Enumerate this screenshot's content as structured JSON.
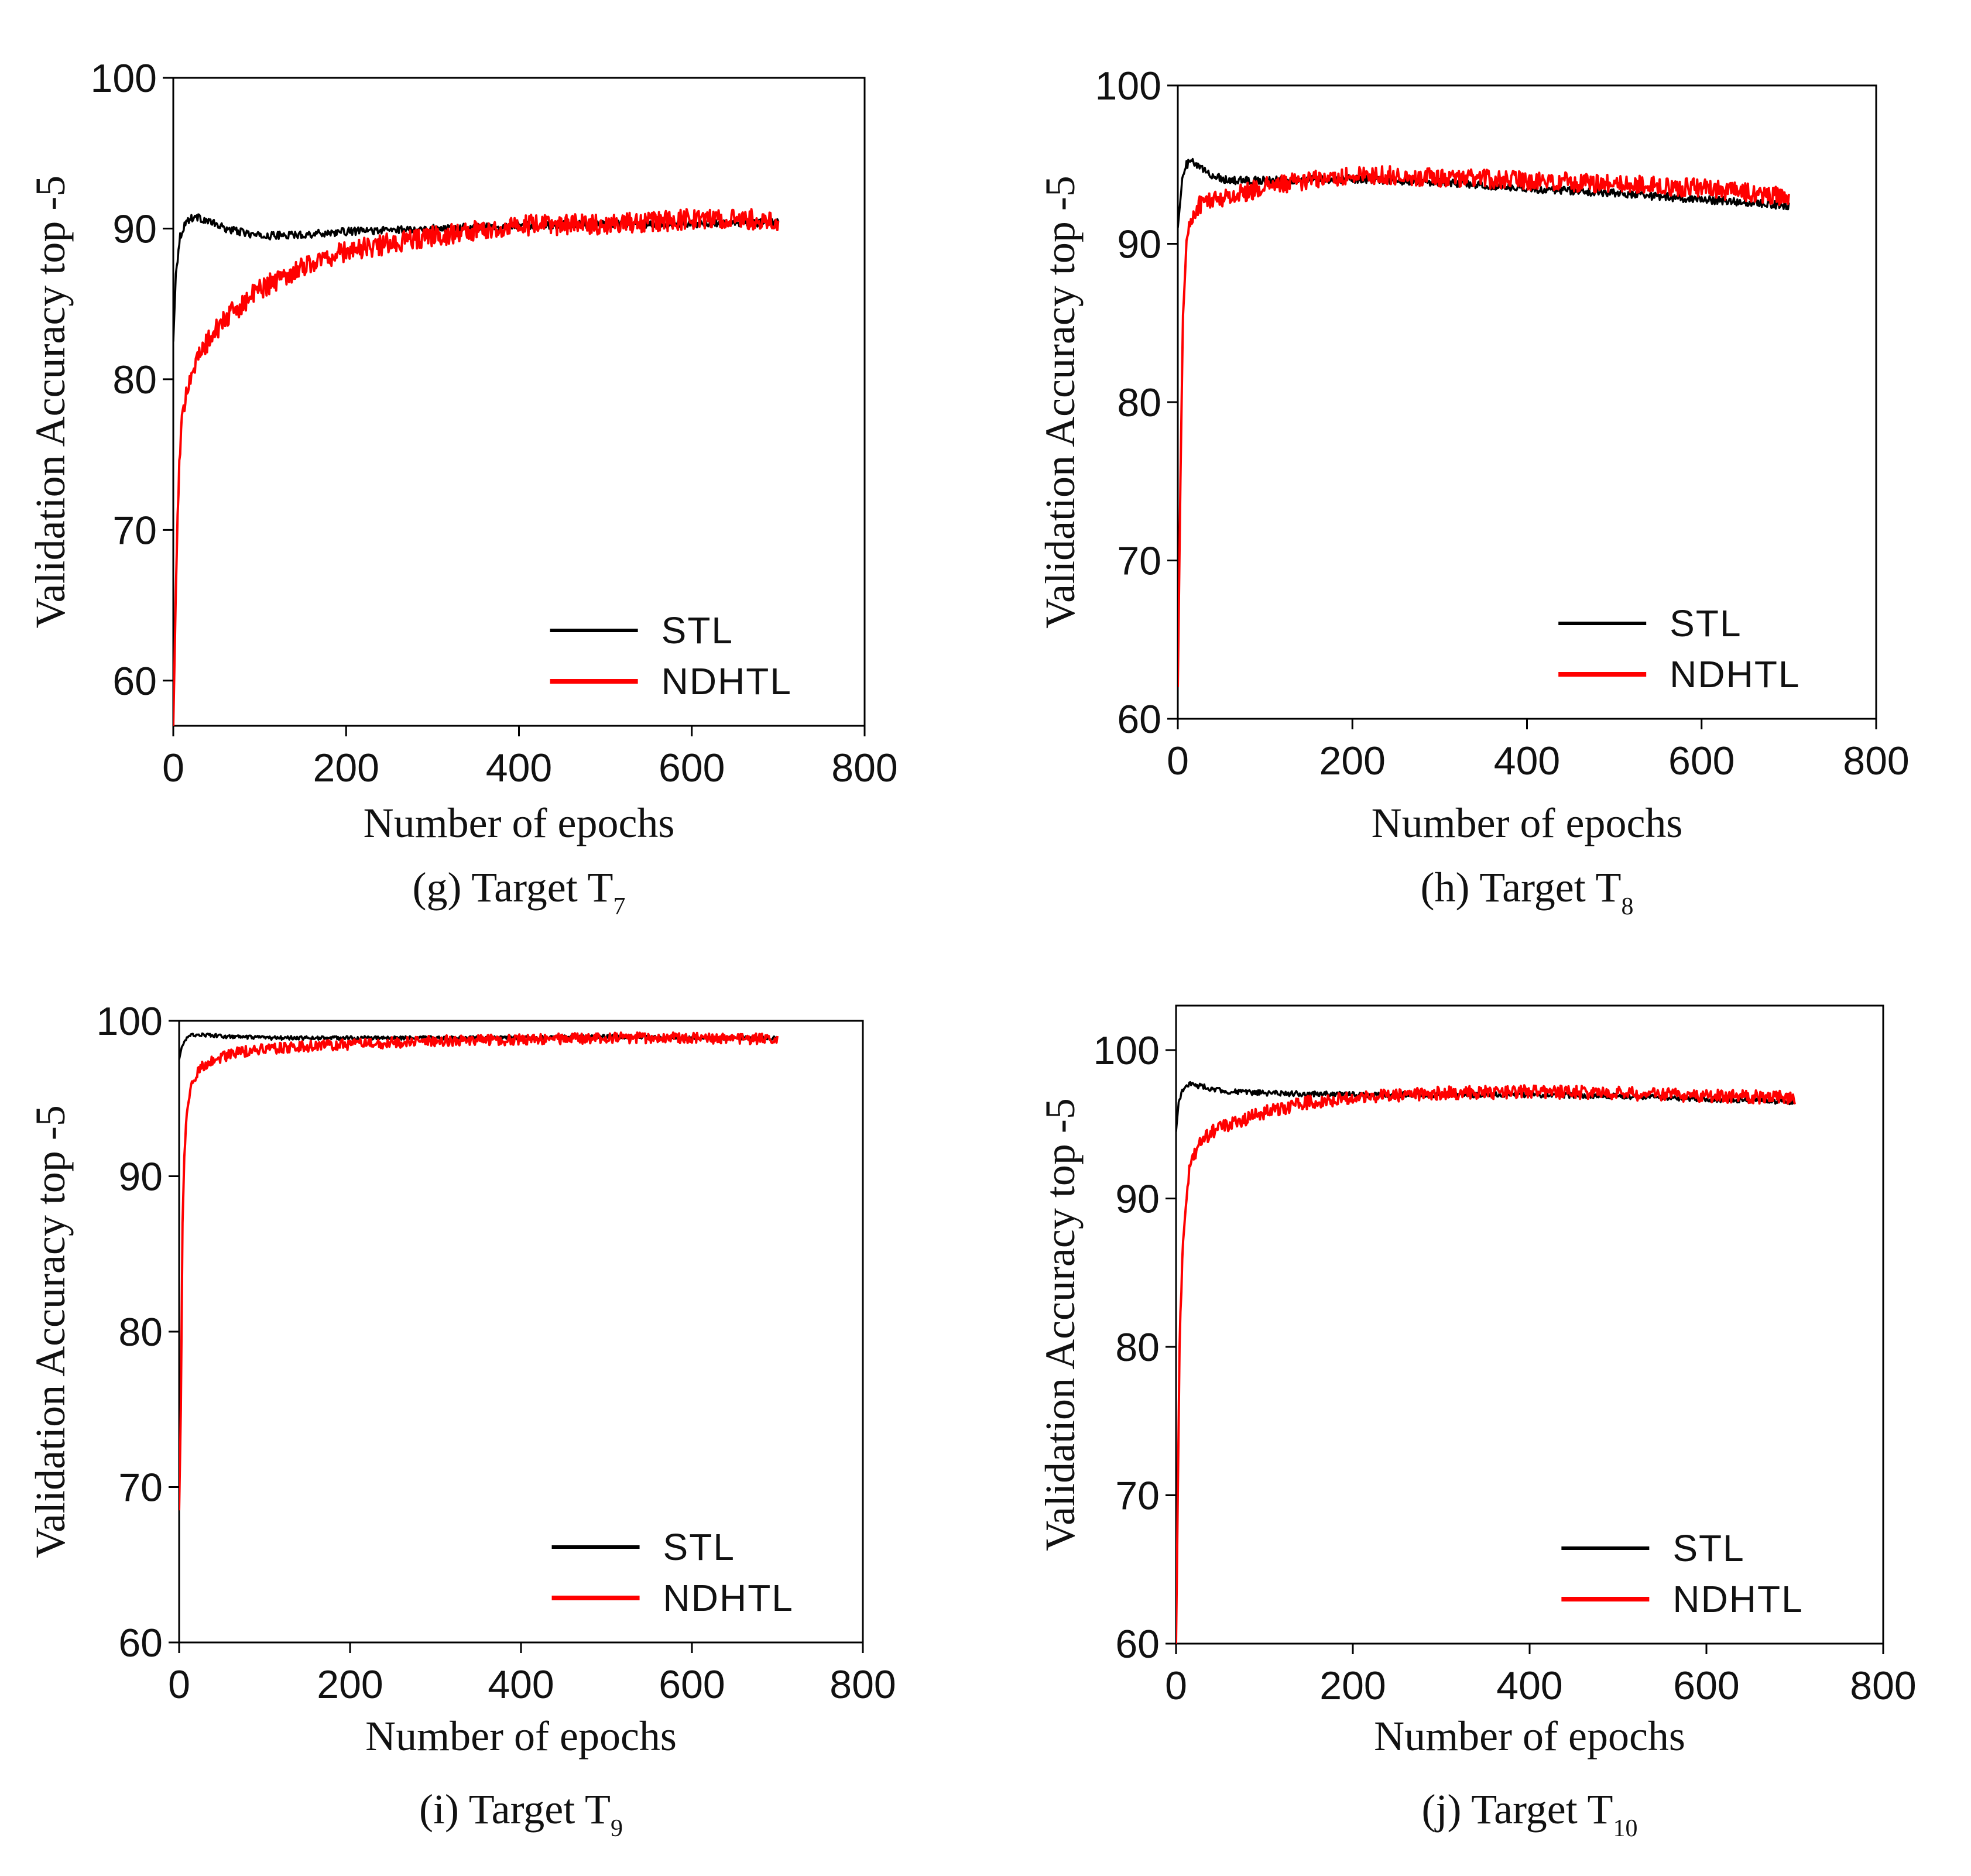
{
  "colors": {
    "STL": "#000000",
    "NDHTL": "#ff0000"
  },
  "chart_data": [
    {
      "id": "g",
      "type": "line",
      "caption_main": "(g) Target T",
      "caption_sub": "7",
      "xlabel": "Number  of epochs",
      "ylabel": "Validation  Accuracy top -5",
      "xlim": [
        0,
        800
      ],
      "ylim": [
        57,
        100
      ],
      "xticks": [
        0,
        200,
        400,
        600,
        800
      ],
      "yticks": [
        60,
        70,
        80,
        90,
        100
      ],
      "legend": {
        "position": "bottom-right",
        "entries": [
          "STL",
          "NDHTL"
        ]
      },
      "series": [
        {
          "name": "STL",
          "color": "#000000",
          "noise": 0.25,
          "x": [
            0,
            3,
            8,
            15,
            25,
            40,
            60,
            100,
            150,
            200,
            300,
            400,
            500,
            600,
            700
          ],
          "y": [
            82.5,
            87,
            89.5,
            90.5,
            90.8,
            90.5,
            90,
            89.5,
            89.6,
            89.8,
            90,
            90.2,
            90.3,
            90.3,
            90.4
          ]
        },
        {
          "name": "NDHTL",
          "color": "#ff0000",
          "noise": 0.7,
          "x": [
            0,
            3,
            6,
            10,
            15,
            25,
            40,
            60,
            100,
            150,
            200,
            300,
            400,
            500,
            600,
            700
          ],
          "y": [
            57,
            66,
            73,
            77,
            79.5,
            81,
            82.5,
            84,
            86,
            87.5,
            88.5,
            89.5,
            90.2,
            90.3,
            90.6,
            90.6
          ]
        }
      ]
    },
    {
      "id": "h",
      "type": "line",
      "caption_main": "(h) Target T",
      "caption_sub": "8",
      "xlabel": "Number  of epochs",
      "ylabel": "Validation  Accuracy top -5",
      "xlim": [
        0,
        800
      ],
      "ylim": [
        60,
        100
      ],
      "xticks": [
        0,
        200,
        400,
        600,
        800
      ],
      "yticks": [
        60,
        70,
        80,
        90,
        100
      ],
      "legend": {
        "position": "bottom-right",
        "entries": [
          "STL",
          "NDHTL"
        ]
      },
      "series": [
        {
          "name": "STL",
          "color": "#000000",
          "noise": 0.25,
          "x": [
            0,
            5,
            10,
            15,
            25,
            40,
            60,
            100,
            200,
            300,
            400,
            500,
            600,
            700
          ],
          "y": [
            91,
            94,
            95,
            95.2,
            94.8,
            94.3,
            94,
            94,
            94.1,
            93.9,
            93.5,
            93.2,
            92.8,
            92.4
          ]
        },
        {
          "name": "NDHTL",
          "color": "#ff0000",
          "noise": 0.6,
          "x": [
            0,
            3,
            6,
            10,
            15,
            25,
            40,
            60,
            100,
            150,
            200,
            250,
            300,
            400,
            500,
            600,
            700
          ],
          "y": [
            62,
            75,
            86,
            90,
            91.5,
            92.5,
            92.8,
            93,
            93.6,
            94,
            94.3,
            94.3,
            94.2,
            94,
            93.8,
            93.5,
            93
          ]
        }
      ]
    },
    {
      "id": "i",
      "type": "line",
      "caption_main": "(i) Target T",
      "caption_sub": "9",
      "xlabel": "Number  of epochs",
      "ylabel": "Validation  Accuracy top -5",
      "xlim": [
        0,
        800
      ],
      "ylim": [
        60,
        100
      ],
      "xticks": [
        0,
        200,
        400,
        600,
        800
      ],
      "yticks": [
        60,
        70,
        80,
        90,
        100
      ],
      "legend": {
        "position": "bottom-right",
        "entries": [
          "STL",
          "NDHTL"
        ]
      },
      "series": [
        {
          "name": "STL",
          "color": "#000000",
          "noise": 0.12,
          "x": [
            0,
            3,
            8,
            15,
            30,
            50,
            100,
            200,
            300,
            400,
            500,
            600,
            700
          ],
          "y": [
            97.5,
            98.3,
            98.8,
            99.1,
            99.1,
            99,
            98.9,
            98.9,
            98.9,
            98.9,
            99,
            98.9,
            98.9
          ]
        },
        {
          "name": "NDHTL",
          "color": "#ff0000",
          "noise": 0.35,
          "x": [
            0,
            2,
            4,
            6,
            10,
            15,
            25,
            40,
            70,
            100,
            200,
            300,
            400,
            500,
            600,
            700
          ],
          "y": [
            68.5,
            75,
            87,
            91.5,
            94.5,
            96,
            97,
            97.5,
            98,
            98.2,
            98.5,
            98.7,
            98.8,
            98.9,
            98.9,
            98.8
          ]
        }
      ]
    },
    {
      "id": "j",
      "type": "line",
      "caption_main": "(j) Target T",
      "caption_sub": "10",
      "xlabel": "Number  of epochs",
      "ylabel": "Validation  Accuracy top -5",
      "xlim": [
        0,
        800
      ],
      "ylim": [
        60,
        103
      ],
      "xticks": [
        0,
        200,
        400,
        600,
        800
      ],
      "yticks": [
        60,
        70,
        80,
        90,
        100
      ],
      "legend": {
        "position": "bottom-right",
        "entries": [
          "STL",
          "NDHTL"
        ]
      },
      "series": [
        {
          "name": "STL",
          "color": "#000000",
          "noise": 0.18,
          "x": [
            0,
            3,
            8,
            15,
            25,
            40,
            60,
            100,
            200,
            300,
            400,
            500,
            600,
            700
          ],
          "y": [
            94.5,
            96.5,
            97.4,
            97.7,
            97.6,
            97.4,
            97.2,
            97.1,
            97,
            97,
            97,
            96.9,
            96.7,
            96.5
          ]
        },
        {
          "name": "NDHTL",
          "color": "#ff0000",
          "noise": 0.45,
          "x": [
            0,
            2,
            4,
            7,
            10,
            15,
            25,
            40,
            60,
            100,
            150,
            200,
            300,
            400,
            500,
            600,
            700
          ],
          "y": [
            60,
            70,
            80,
            86,
            89,
            92,
            93.5,
            94.5,
            95,
            95.8,
            96.5,
            96.8,
            97.1,
            97.2,
            97.1,
            96.9,
            96.8
          ]
        }
      ]
    }
  ]
}
